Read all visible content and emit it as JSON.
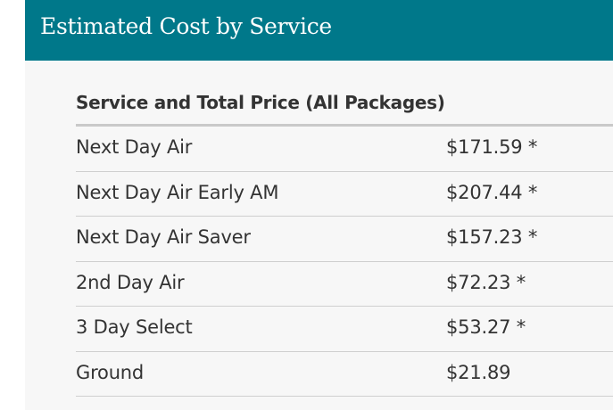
{
  "panel": {
    "title": "Estimated Cost by Service",
    "accent_color": "#00788a"
  },
  "table": {
    "heading": "Service and Total Price (All Packages)",
    "rows": [
      {
        "service": "Next Day Air",
        "price": "$171.59 *"
      },
      {
        "service": "Next Day Air Early AM",
        "price": "$207.44 *"
      },
      {
        "service": "Next Day Air Saver",
        "price": "$157.23 *"
      },
      {
        "service": "2nd Day Air",
        "price": "$72.23 *"
      },
      {
        "service": "3 Day Select",
        "price": "$53.27 *"
      },
      {
        "service": "Ground",
        "price": "$21.89"
      }
    ]
  }
}
